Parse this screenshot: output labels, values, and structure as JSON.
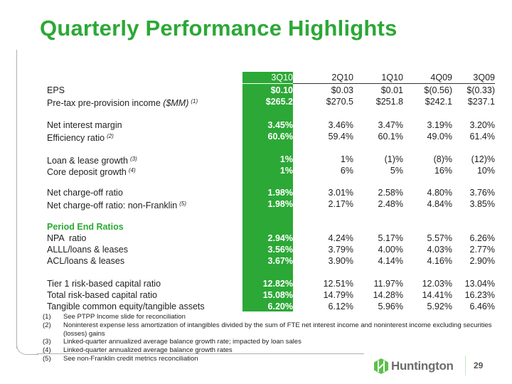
{
  "title": "Quarterly Performance Highlights",
  "columns": [
    "3Q10",
    "2Q10",
    "1Q10",
    "4Q09",
    "3Q09"
  ],
  "colors": {
    "accent": "#2ca836",
    "logo_text": "#6d6d6d"
  },
  "rows": [
    {
      "label": "EPS",
      "values": [
        "$0.10",
        "$0.03",
        "$0.01",
        "$(0.56)",
        "$(0.33)"
      ]
    },
    {
      "label": "Pre-tax pre-provision income",
      "label_italic": "($MM)",
      "note": "(1)",
      "values": [
        "$265.2",
        "$270.5",
        "$251.8",
        "$242.1",
        "$237.1"
      ]
    },
    {
      "label": "Net interest margin",
      "values": [
        "3.45%",
        "3.46%",
        "3.47%",
        "3.19%",
        "3.20%"
      ]
    },
    {
      "label": "Efficiency ratio",
      "note": "(2)",
      "values": [
        "60.6%",
        "59.4%",
        "60.1%",
        "49.0%",
        "61.4%"
      ]
    },
    {
      "label": "Loan & lease growth",
      "note": "(3)",
      "values": [
        "1%",
        "1%",
        "(1)%",
        "(8)%",
        "(12)%"
      ]
    },
    {
      "label": "Core deposit growth",
      "note": "(4)",
      "values": [
        "1%",
        "6%",
        "5%",
        "16%",
        "10%"
      ]
    },
    {
      "label": "Net charge-off ratio",
      "values": [
        "1.98%",
        "3.01%",
        "2.58%",
        "4.80%",
        "3.76%"
      ]
    },
    {
      "label": "Net charge-off ratio: non-Franklin",
      "note": "(5)",
      "values": [
        "1.98%",
        "2.17%",
        "2.48%",
        "4.84%",
        "3.85%"
      ]
    },
    {
      "label": "NPA  ratio",
      "values": [
        "2.94%",
        "4.24%",
        "5.17%",
        "5.57%",
        "6.26%"
      ]
    },
    {
      "label": "ALLL/loans & leases",
      "values": [
        "3.56%",
        "3.79%",
        "4.00%",
        "4.03%",
        "2.77%"
      ]
    },
    {
      "label": "ACL/loans & leases",
      "values": [
        "3.67%",
        "3.90%",
        "4.14%",
        "4.16%",
        "2.90%"
      ]
    },
    {
      "label": "Tier 1 risk-based capital ratio",
      "values": [
        "12.82%",
        "12.51%",
        "11.97%",
        "12.03%",
        "13.04%"
      ]
    },
    {
      "label": "Total risk-based capital ratio",
      "values": [
        "15.08%",
        "14.79%",
        "14.28%",
        "14.41%",
        "16.23%"
      ]
    },
    {
      "label": "Tangible common equity/tangible assets",
      "values": [
        "6.20%",
        "6.12%",
        "5.96%",
        "5.92%",
        "6.46%"
      ]
    }
  ],
  "section_heading": "Period End Ratios",
  "footnotes": [
    {
      "num": "(1)",
      "text": "See PTPP Income slide for reconciliation"
    },
    {
      "num": "(2)",
      "text": "Noninterest expense less amortization of intangibles divided by the sum of FTE net interest income and noninterest income excluding securities (losses) gains"
    },
    {
      "num": "(3)",
      "text": "Linked-quarter annualized average balance growth rate; impacted by loan sales"
    },
    {
      "num": "(4)",
      "text": "Linked-quarter annualized average balance growth rates"
    },
    {
      "num": "(5)",
      "text": "See non-Franklin credit metrics reconciliation"
    }
  ],
  "logo": {
    "text": "Huntington",
    "icon": "huntington-hexagon-icon"
  },
  "page_number": "29"
}
